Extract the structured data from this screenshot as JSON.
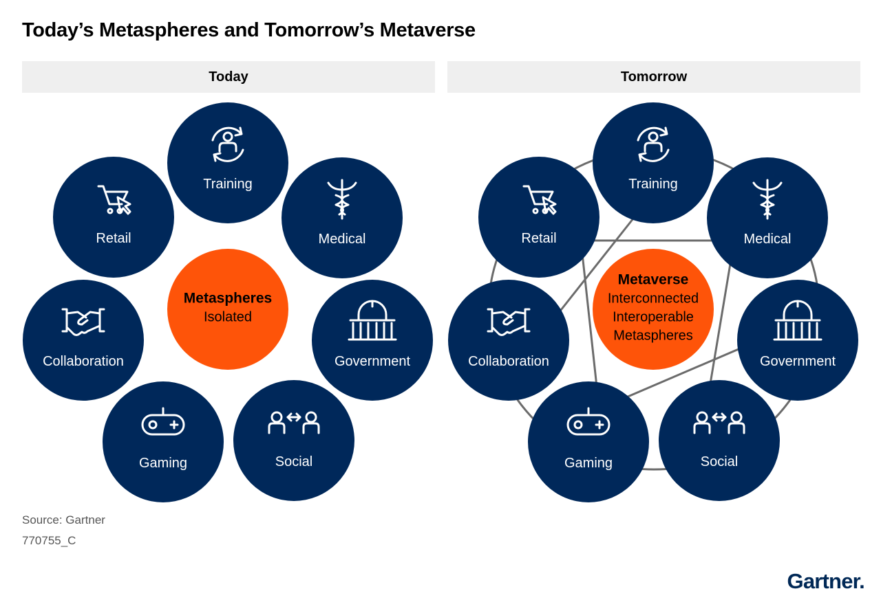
{
  "title": "Today’s Metaspheres and Tomorrow’s Metaverse",
  "panels": {
    "today": {
      "header": "Today",
      "center_bold": "Metaspheres",
      "center_lines": [
        "Isolated"
      ]
    },
    "tomorrow": {
      "header": "Tomorrow",
      "center_bold": "Metaverse",
      "center_lines": [
        "Interconnected",
        "Interoperable",
        "Metaspheres"
      ]
    }
  },
  "nodes": [
    {
      "label": "Training",
      "icon": "training-icon"
    },
    {
      "label": "Medical",
      "icon": "caduceus-icon"
    },
    {
      "label": "Government",
      "icon": "government-building-icon"
    },
    {
      "label": "Social",
      "icon": "social-people-icon"
    },
    {
      "label": "Gaming",
      "icon": "game-controller-icon"
    },
    {
      "label": "Collaboration",
      "icon": "handshake-icon"
    },
    {
      "label": "Retail",
      "icon": "shopping-cart-icon"
    }
  ],
  "footer": {
    "source": "Source: Gartner",
    "code": "770755_C"
  },
  "logo": "Gartner.",
  "colors": {
    "node_fill": "#00285a",
    "center_fill": "#fe5409",
    "connector": "#6b6b6b",
    "header_bg": "#efefef"
  }
}
